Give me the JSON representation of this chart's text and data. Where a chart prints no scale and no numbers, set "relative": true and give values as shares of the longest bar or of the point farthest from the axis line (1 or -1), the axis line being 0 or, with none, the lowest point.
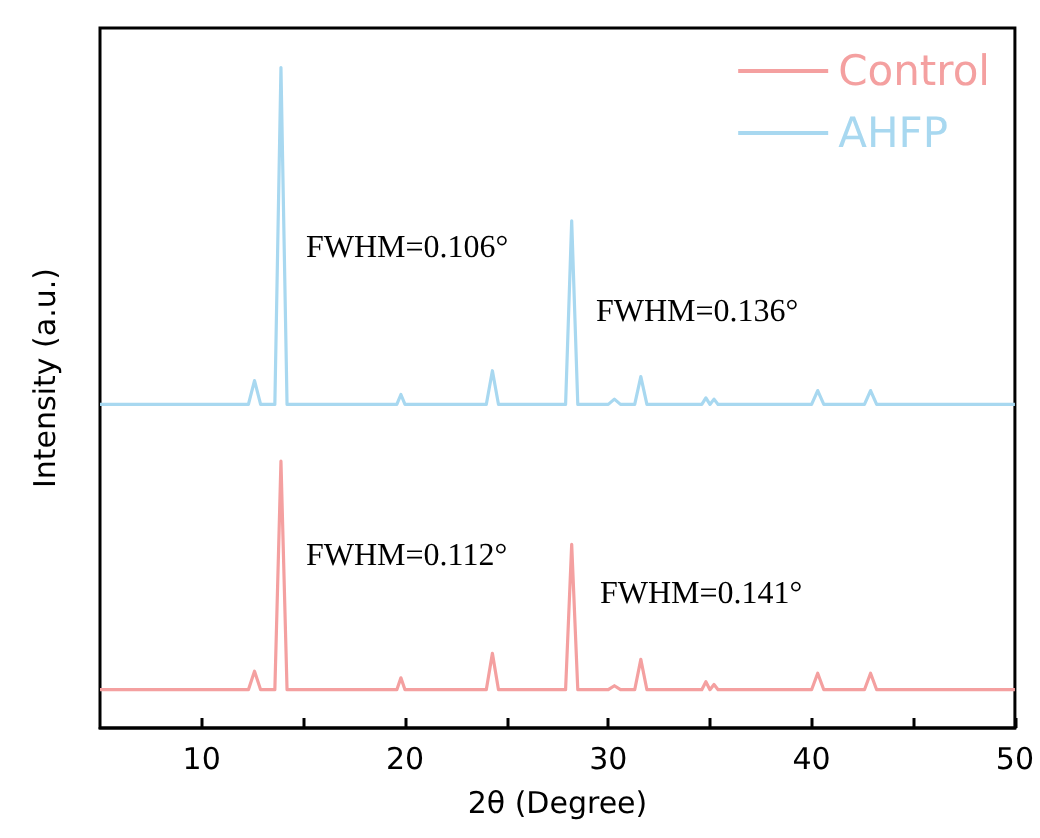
{
  "chart_data": {
    "type": "line",
    "relative": true,
    "xlabel": "2θ (Degree)",
    "ylabel": "Intensity (a.u.)",
    "xlim": [
      5,
      50
    ],
    "xticks": [
      10,
      {
        "value": 15,
        "label": null
      },
      20,
      {
        "value": 25,
        "label": null
      },
      30,
      {
        "value": 35,
        "label": null
      },
      40,
      {
        "value": 45,
        "label": null
      },
      50
    ],
    "legend": "top right",
    "grid": false,
    "marker": "none",
    "line_style": "solid",
    "x": [
      5,
      12.3,
      12.6,
      12.9,
      13.6,
      13.9,
      14.2,
      19.6,
      19.8,
      20.0,
      24.0,
      24.3,
      24.6,
      27.9,
      28.2,
      28.5,
      30.0,
      30.3,
      30.6,
      31.3,
      31.6,
      31.9,
      34.6,
      34.8,
      35.0,
      35.2,
      35.4,
      40.0,
      40.3,
      40.6,
      42.6,
      42.9,
      43.2,
      50
    ],
    "series": [
      {
        "name": "Control",
        "color": "#f4a0a0",
        "values": [
          0.058,
          0.058,
          0.086,
          0.058,
          0.058,
          0.404,
          0.058,
          0.058,
          0.076,
          0.058,
          0.058,
          0.113,
          0.058,
          0.058,
          0.278,
          0.058,
          0.058,
          0.064,
          0.058,
          0.058,
          0.104,
          0.058,
          0.058,
          0.07,
          0.058,
          0.066,
          0.058,
          0.058,
          0.083,
          0.058,
          0.058,
          0.083,
          0.058,
          0.058
        ]
      },
      {
        "name": "AHFP",
        "color": "#a8d8f0",
        "values": [
          0.49,
          0.49,
          0.526,
          0.49,
          0.49,
          1,
          0.49,
          0.49,
          0.505,
          0.49,
          0.49,
          0.541,
          0.49,
          0.49,
          0.768,
          0.49,
          0.49,
          0.498,
          0.49,
          0.49,
          0.532,
          0.49,
          0.49,
          0.5,
          0.49,
          0.498,
          0.49,
          0.49,
          0.511,
          0.49,
          0.49,
          0.511,
          0.49,
          0.49
        ]
      }
    ],
    "annotations": [
      "FWHM=0.106°",
      "FWHM=0.136°",
      "FWHM=0.112°",
      "FWHM=0.141°"
    ]
  }
}
